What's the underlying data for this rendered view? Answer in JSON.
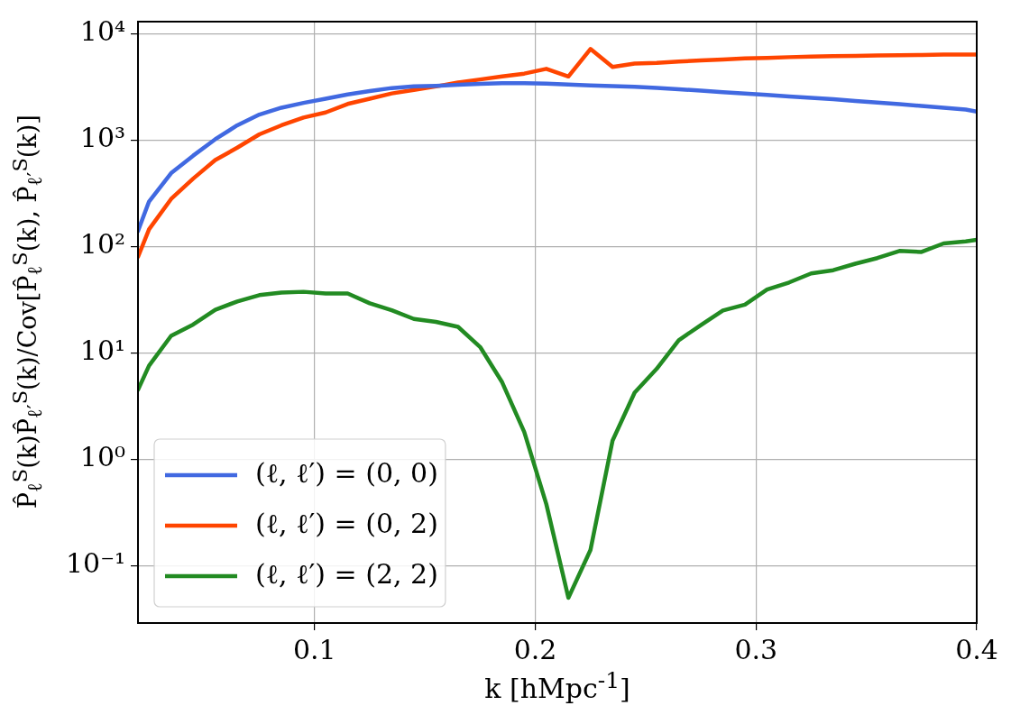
{
  "chart_data": {
    "type": "line",
    "xlabel": "k [hMpc$^{-1}$]",
    "ylabel": "P̂$_{ℓ}$$^{S}$(k)P̂$_{ℓ′}$$^{S}$(k)/Cov[P̂$_{ℓ}$$^{S}$(k), P̂$_{ℓ′}$$^{S}$(k)]",
    "x": [
      0.02,
      0.025,
      0.035,
      0.045,
      0.055,
      0.065,
      0.075,
      0.085,
      0.095,
      0.105,
      0.115,
      0.125,
      0.135,
      0.145,
      0.155,
      0.165,
      0.175,
      0.185,
      0.195,
      0.205,
      0.215,
      0.225,
      0.235,
      0.245,
      0.255,
      0.265,
      0.275,
      0.285,
      0.295,
      0.305,
      0.315,
      0.325,
      0.335,
      0.345,
      0.355,
      0.365,
      0.375,
      0.385,
      0.395,
      0.4
    ],
    "series": [
      {
        "name": "(ℓ, ℓ′) = (0, 0)",
        "color": "#4169e1",
        "values": [
          140,
          265,
          490,
          715,
          1020,
          1380,
          1740,
          2020,
          2240,
          2450,
          2690,
          2890,
          3090,
          3200,
          3240,
          3310,
          3380,
          3430,
          3440,
          3400,
          3330,
          3270,
          3220,
          3170,
          3100,
          3010,
          2920,
          2820,
          2740,
          2660,
          2580,
          2500,
          2430,
          2340,
          2260,
          2180,
          2100,
          2020,
          1940,
          1860
        ]
      },
      {
        "name": "(ℓ, ℓ′) = (0, 2)",
        "color": "#ff4500",
        "values": [
          80,
          145,
          280,
          435,
          650,
          850,
          1135,
          1380,
          1630,
          1820,
          2190,
          2450,
          2750,
          2960,
          3200,
          3480,
          3720,
          3980,
          4220,
          4680,
          3970,
          7200,
          4870,
          5240,
          5320,
          5470,
          5620,
          5740,
          5870,
          5940,
          6030,
          6110,
          6150,
          6190,
          6240,
          6290,
          6330,
          6380,
          6380,
          6380
        ]
      },
      {
        "name": "(ℓ, ℓ′) = (2, 2)",
        "color": "#228b22",
        "values": [
          4.5,
          7.6,
          14.5,
          18.5,
          25.5,
          30.5,
          35,
          37,
          37.6,
          36.3,
          36.3,
          29.3,
          25.2,
          20.9,
          19.6,
          17.6,
          11.4,
          5.3,
          1.81,
          0.38,
          0.05,
          0.141,
          1.5,
          4.24,
          7.1,
          13.2,
          18.3,
          25.1,
          28.5,
          39.4,
          46,
          56,
          60,
          69,
          78,
          91,
          89,
          107,
          112,
          116
        ]
      }
    ],
    "log": "y",
    "xlim": [
      0.02,
      0.4
    ],
    "xticks": [
      0.1,
      0.2,
      0.3,
      0.4
    ],
    "ylim": [
      0.029,
      13000
    ],
    "yticks": [
      {
        "value": 0.1,
        "label": "10⁻¹"
      },
      {
        "value": 1,
        "label": "10⁰"
      },
      {
        "value": 10,
        "label": "10¹"
      },
      {
        "value": 100,
        "label": "10²"
      },
      {
        "value": 1000,
        "label": "10³"
      },
      {
        "value": 10000,
        "label": "10⁴"
      }
    ],
    "grid": true,
    "legend": "bottom left",
    "marker": "none",
    "line_style": "solid"
  }
}
